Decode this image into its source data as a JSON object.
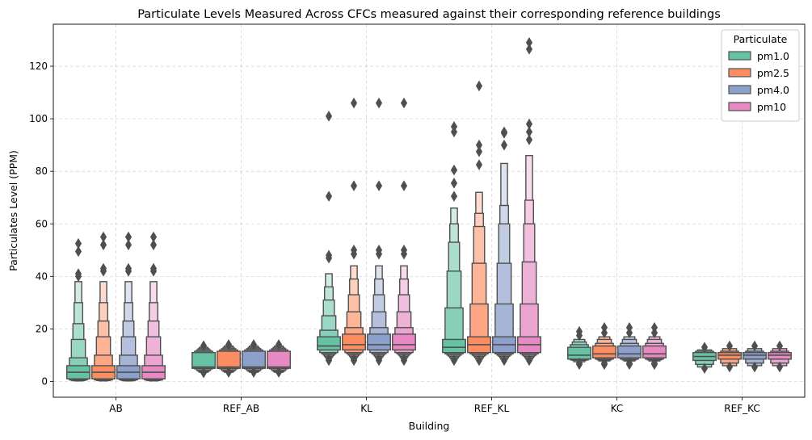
{
  "chart_data": {
    "type": "boxen",
    "title": "Particulate Levels Measured Across CFCs measured against their corresponding reference buildings",
    "xlabel": "Building",
    "ylabel": "Particulates Level (PPM)",
    "ylim": [
      -6,
      136
    ],
    "yticks": [
      0,
      20,
      40,
      60,
      80,
      100,
      120
    ],
    "grid": true,
    "legend": {
      "title": "Particulate",
      "placement": "top-right",
      "entries": [
        "pm1.0",
        "pm2.5",
        "pm4.0",
        "pm10"
      ]
    },
    "categories": [
      "AB",
      "REF_AB",
      "KL",
      "REF_KL",
      "KC",
      "REF_KC"
    ],
    "series": [
      {
        "name": "pm1.0",
        "color": "#66c2a5",
        "data": [
          {
            "median": 3.5,
            "q": [
              [
                1,
                6
              ],
              [
                0.6,
                9
              ],
              [
                0.4,
                16
              ],
              [
                0.3,
                22
              ],
              [
                0.3,
                30
              ],
              [
                0.2,
                38
              ]
            ],
            "outliers": [
              41,
              40,
              49.5,
              52.5
            ]
          },
          {
            "median": 5.5,
            "q": [
              [
                5,
                11
              ],
              [
                4.8,
                11.5
              ],
              [
                4.2,
                12
              ],
              [
                3.8,
                12.5
              ],
              [
                3.5,
                13
              ]
            ],
            "outliers": [
              3.3,
              13.6
            ]
          },
          {
            "median": 13.5,
            "q": [
              [
                12,
                17
              ],
              [
                11,
                19.5
              ],
              [
                10.5,
                25
              ],
              [
                10,
                31
              ],
              [
                9.5,
                36
              ],
              [
                9,
                41
              ]
            ],
            "outliers": [
              8,
              8.5,
              47,
              48,
              70.5,
              101
            ]
          },
          {
            "median": 13,
            "q": [
              [
                11,
                16
              ],
              [
                10.5,
                28
              ],
              [
                10,
                42
              ],
              [
                9.5,
                53
              ],
              [
                9,
                60
              ],
              [
                8.5,
                66
              ]
            ],
            "outliers": [
              8,
              70.5,
              75.5,
              80.5,
              95,
              97
            ]
          },
          {
            "median": 10,
            "q": [
              [
                8.5,
                13
              ],
              [
                8.2,
                14
              ],
              [
                8,
                15
              ],
              [
                7.5,
                16
              ]
            ],
            "outliers": [
              6.5,
              7,
              17.5,
              19
            ]
          },
          {
            "median": 9.5,
            "q": [
              [
                8,
                11
              ],
              [
                6.5,
                11.5
              ],
              [
                5.5,
                12
              ]
            ],
            "outliers": [
              5,
              13
            ]
          }
        ]
      },
      {
        "name": "pm2.5",
        "color": "#fc8d62",
        "data": [
          {
            "median": 3.5,
            "q": [
              [
                1,
                6
              ],
              [
                0.6,
                10
              ],
              [
                0.4,
                17
              ],
              [
                0.3,
                23
              ],
              [
                0.3,
                30
              ],
              [
                0.2,
                38
              ]
            ],
            "outliers": [
              42,
              43,
              52,
              55
            ]
          },
          {
            "median": 5.5,
            "q": [
              [
                5,
                11.5
              ],
              [
                4.8,
                12
              ],
              [
                4.2,
                12.5
              ],
              [
                3.8,
                13
              ],
              [
                3.5,
                13.5
              ]
            ],
            "outliers": [
              3.5,
              14
            ]
          },
          {
            "median": 14,
            "q": [
              [
                12,
                18
              ],
              [
                11,
                20.5
              ],
              [
                10.5,
                26.5
              ],
              [
                10,
                33
              ],
              [
                9.5,
                39
              ],
              [
                9,
                44
              ]
            ],
            "outliers": [
              8,
              8.5,
              48.5,
              50,
              74.5,
              106
            ]
          },
          {
            "median": 14,
            "q": [
              [
                11,
                17
              ],
              [
                10.5,
                29.5
              ],
              [
                10,
                45
              ],
              [
                9.5,
                59
              ],
              [
                9,
                64
              ],
              [
                8.5,
                72
              ]
            ],
            "outliers": [
              8,
              82.5,
              87.5,
              90,
              112.5
            ]
          },
          {
            "median": 10.5,
            "q": [
              [
                9,
                13.5
              ],
              [
                8.5,
                14.5
              ],
              [
                8.2,
                16
              ],
              [
                7.8,
                17
              ]
            ],
            "outliers": [
              6.5,
              7,
              18.5,
              20.5
            ]
          },
          {
            "median": 10,
            "q": [
              [
                8.5,
                11
              ],
              [
                7,
                11.5
              ],
              [
                6,
                12.5
              ]
            ],
            "outliers": [
              5.5,
              13.5
            ]
          }
        ]
      },
      {
        "name": "pm4.0",
        "color": "#8da0cb",
        "data": [
          {
            "median": 3.5,
            "q": [
              [
                1,
                6
              ],
              [
                0.6,
                10
              ],
              [
                0.4,
                17
              ],
              [
                0.3,
                23
              ],
              [
                0.3,
                30
              ],
              [
                0.2,
                38
              ]
            ],
            "outliers": [
              42,
              43,
              52,
              55
            ]
          },
          {
            "median": 5.5,
            "q": [
              [
                5,
                11.5
              ],
              [
                4.8,
                12
              ],
              [
                4.2,
                12.5
              ],
              [
                3.8,
                13
              ],
              [
                3.5,
                13.5
              ]
            ],
            "outliers": [
              3.5,
              14
            ]
          },
          {
            "median": 14,
            "q": [
              [
                12,
                18
              ],
              [
                11,
                20.5
              ],
              [
                10.5,
                26.5
              ],
              [
                10,
                33
              ],
              [
                9.5,
                39
              ],
              [
                9,
                44
              ]
            ],
            "outliers": [
              8,
              8.5,
              48.5,
              50,
              74.5,
              106
            ]
          },
          {
            "median": 14,
            "q": [
              [
                11,
                17
              ],
              [
                10.5,
                29.5
              ],
              [
                10,
                45
              ],
              [
                9.5,
                60
              ],
              [
                9,
                67
              ],
              [
                8.5,
                83
              ]
            ],
            "outliers": [
              8,
              90,
              94.5,
              95
            ]
          },
          {
            "median": 10.5,
            "q": [
              [
                9,
                13.5
              ],
              [
                8.5,
                14.5
              ],
              [
                8.2,
                16
              ],
              [
                7.8,
                17
              ]
            ],
            "outliers": [
              6.5,
              7,
              18.5,
              20.5
            ]
          },
          {
            "median": 10,
            "q": [
              [
                8.5,
                11
              ],
              [
                7,
                11.5
              ],
              [
                6,
                12.5
              ]
            ],
            "outliers": [
              5.5,
              13.5
            ]
          }
        ]
      },
      {
        "name": "pm10",
        "color": "#e78ac3",
        "data": [
          {
            "median": 3.5,
            "q": [
              [
                1,
                6
              ],
              [
                0.6,
                10
              ],
              [
                0.4,
                17
              ],
              [
                0.3,
                23
              ],
              [
                0.3,
                30
              ],
              [
                0.2,
                38
              ]
            ],
            "outliers": [
              42,
              43,
              52,
              55
            ]
          },
          {
            "median": 5.5,
            "q": [
              [
                5,
                11.5
              ],
              [
                4.8,
                12
              ],
              [
                4.2,
                12.5
              ],
              [
                3.8,
                13
              ],
              [
                3.5,
                13.5
              ]
            ],
            "outliers": [
              3.5,
              14
            ]
          },
          {
            "median": 14,
            "q": [
              [
                12,
                18
              ],
              [
                11,
                20.5
              ],
              [
                10.5,
                26.5
              ],
              [
                10,
                33
              ],
              [
                9.5,
                39
              ],
              [
                9,
                44
              ]
            ],
            "outliers": [
              8,
              8.5,
              48.5,
              50,
              74.5,
              106
            ]
          },
          {
            "median": 14,
            "q": [
              [
                11,
                17
              ],
              [
                10.5,
                29.5
              ],
              [
                10,
                45.5
              ],
              [
                9.5,
                60
              ],
              [
                9,
                69
              ],
              [
                8.5,
                86
              ]
            ],
            "outliers": [
              8,
              92,
              95,
              98,
              126.5,
              129
            ]
          },
          {
            "median": 10.5,
            "q": [
              [
                9,
                13.5
              ],
              [
                8.5,
                14.5
              ],
              [
                8.2,
                16
              ],
              [
                7.8,
                17
              ]
            ],
            "outliers": [
              6.5,
              7,
              18.5,
              20.5
            ]
          },
          {
            "median": 10,
            "q": [
              [
                8.5,
                11
              ],
              [
                7,
                11.5
              ],
              [
                6,
                12.5
              ]
            ],
            "outliers": [
              5.5,
              13.5
            ]
          }
        ]
      }
    ]
  }
}
